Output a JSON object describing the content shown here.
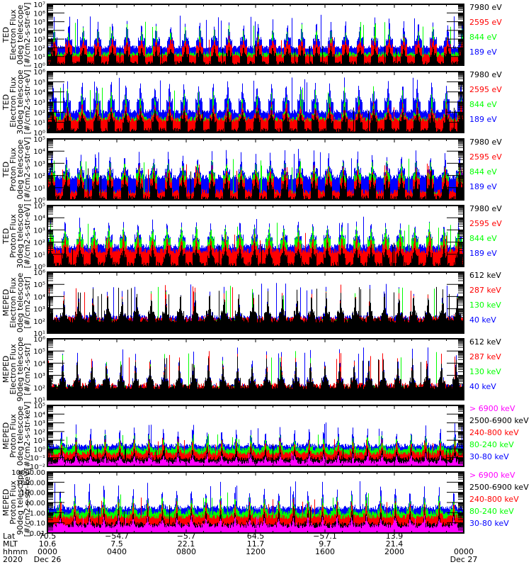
{
  "chart_data": {
    "type": "line",
    "title": "",
    "x_range_hours": [
      0,
      24
    ],
    "x_major_ticks_hours": [
      0,
      4,
      8,
      12,
      16,
      20,
      24
    ],
    "x_minor_step_hours": 1,
    "footer": {
      "row_labels": [
        "Lat",
        "MLT",
        "hhmm",
        "2020"
      ],
      "columns": [
        {
          "hour": 0,
          "lat": "70.5",
          "mlt": "10.6",
          "hhmm": "0000",
          "date": "Dec 26"
        },
        {
          "hour": 4,
          "lat": "−54.7",
          "mlt": "7.5",
          "hhmm": "0400",
          "date": ""
        },
        {
          "hour": 8,
          "lat": "−5.7",
          "mlt": "22.1",
          "hhmm": "0800",
          "date": ""
        },
        {
          "hour": 12,
          "lat": "64.5",
          "mlt": "11.7",
          "hhmm": "1200",
          "date": ""
        },
        {
          "hour": 16,
          "lat": "−57.1",
          "mlt": "9.7",
          "hhmm": "1600",
          "date": ""
        },
        {
          "hour": 20,
          "lat": "13.9",
          "mlt": "21.4",
          "hhmm": "2000",
          "date": ""
        },
        {
          "hour": 24,
          "lat": "",
          "mlt": "",
          "hhmm": "0000",
          "date": "Dec 27"
        }
      ]
    },
    "orbit_period_hours": 1.68,
    "panels": [
      {
        "ylabel": [
          "TED",
          "Electron Flux",
          "0deg telescope",
          "[#/cm2-s-str-eV]"
        ],
        "yscale": "log",
        "ylim_exp": [
          0,
          7
        ],
        "yticks": [
          "10⁰",
          "10¹",
          "10²",
          "10³",
          "10⁴",
          "10⁵",
          "10⁶",
          "10⁷"
        ],
        "series": [
          {
            "name": "189 eV",
            "color": "#0000ff",
            "base_exp": 2.0,
            "band_exp": 3.0,
            "peak_exp": 5.8
          },
          {
            "name": "844 eV",
            "color": "#00ff00",
            "base_exp": 1.3,
            "band_exp": 1.8,
            "peak_exp": 5.0
          },
          {
            "name": "2595 eV",
            "color": "#ff0000",
            "base_exp": 1.0,
            "band_exp": 2.2,
            "peak_exp": 3.4
          },
          {
            "name": "7980 eV",
            "color": "#000000",
            "base_exp": 0.2,
            "band_exp": 1.2,
            "peak_exp": 2.6
          }
        ],
        "legend": [
          "7980 eV",
          "2595 eV",
          "844 eV",
          "189 eV"
        ]
      },
      {
        "ylabel": [
          "TED",
          "Electron Flux",
          "30deg telescope",
          "[#/cm2-s-str-eV]"
        ],
        "yscale": "log",
        "ylim_exp": [
          0,
          6
        ],
        "yticks": [
          "10⁰",
          "10¹",
          "10²",
          "10³",
          "10⁴",
          "10⁵",
          "10⁶"
        ],
        "series": [
          {
            "name": "189 eV",
            "color": "#0000ff",
            "base_exp": 2.0,
            "band_exp": 3.2,
            "peak_exp": 5.6
          },
          {
            "name": "844 eV",
            "color": "#00ff00",
            "base_exp": 1.3,
            "band_exp": 1.8,
            "peak_exp": 4.6
          },
          {
            "name": "2595 eV",
            "color": "#ff0000",
            "base_exp": 1.2,
            "band_exp": 1.7,
            "peak_exp": 3.2
          },
          {
            "name": "7980 eV",
            "color": "#000000",
            "base_exp": 0.2,
            "band_exp": 1.2,
            "peak_exp": 2.6
          }
        ],
        "legend": [
          "7980 eV",
          "2595 eV",
          "844 eV",
          "189 eV"
        ]
      },
      {
        "ylabel": [
          "TED",
          "Proton Flux",
          "0deg telescope",
          "[#/cm2-s-str-eV]"
        ],
        "yscale": "log",
        "ylim_exp": [
          0,
          5
        ],
        "yticks": [
          "10⁰",
          "10¹",
          "10²",
          "10³",
          "10⁴",
          "10⁵"
        ],
        "series": [
          {
            "name": "189 eV",
            "color": "#0000ff",
            "base_exp": 1.8,
            "band_exp": 2.4,
            "peak_exp": 4.2
          },
          {
            "name": "844 eV",
            "color": "#00ff00",
            "base_exp": 0.4,
            "band_exp": 2.0,
            "peak_exp": 3.4
          },
          {
            "name": "2595 eV",
            "color": "#ff0000",
            "base_exp": 0.6,
            "band_exp": 1.6,
            "peak_exp": 3.0
          },
          {
            "name": "7980 eV",
            "color": "#000000",
            "base_exp": 0.1,
            "band_exp": 1.1,
            "peak_exp": 2.6
          }
        ],
        "legend": [
          "7980 eV",
          "2595 eV",
          "844 eV",
          "189 eV"
        ]
      },
      {
        "ylabel": [
          "TED",
          "Proton Flux",
          "30deg telescope",
          "[#/cm2-s-str-eV]"
        ],
        "yscale": "log",
        "ylim_exp": [
          0,
          5
        ],
        "yticks": [
          "10⁰",
          "10¹",
          "10²",
          "10³",
          "10⁴",
          "10⁵"
        ],
        "series": [
          {
            "name": "189 eV",
            "color": "#0000ff",
            "base_exp": 1.6,
            "band_exp": 2.4,
            "peak_exp": 4.1
          },
          {
            "name": "844 eV",
            "color": "#00ff00",
            "base_exp": 0.6,
            "band_exp": 2.2,
            "peak_exp": 3.6
          },
          {
            "name": "2595 eV",
            "color": "#ff0000",
            "base_exp": 1.2,
            "band_exp": 1.6,
            "peak_exp": 2.8
          },
          {
            "name": "7980 eV",
            "color": "#000000",
            "base_exp": 0.1,
            "band_exp": 0.9,
            "peak_exp": 2.0
          }
        ],
        "legend": [
          "7980 eV",
          "2595 eV",
          "844 eV",
          "189 eV"
        ]
      },
      {
        "ylabel": [
          "MEPED",
          "Electron Flux",
          "0deg telescope",
          "[#/cm2-s-str]"
        ],
        "yscale": "log",
        "ylim_exp": [
          1,
          6
        ],
        "yticks": [
          "10¹",
          "10²",
          "10³",
          "10⁴",
          "10⁵",
          "10⁶"
        ],
        "series": [
          {
            "name": "40 keV",
            "color": "#0000ff",
            "base_exp": 2.2,
            "band_exp": 2.5,
            "peak_exp": 5.2
          },
          {
            "name": "130 keV",
            "color": "#00ff00",
            "base_exp": 1.9,
            "band_exp": 2.1,
            "peak_exp": 4.9
          },
          {
            "name": "287 keV",
            "color": "#ff0000",
            "base_exp": 2.1,
            "band_exp": 2.3,
            "peak_exp": 5.0
          },
          {
            "name": "612 keV",
            "color": "#000000",
            "base_exp": 2.0,
            "band_exp": 2.6,
            "peak_exp": 4.8
          }
        ],
        "legend": [
          "612 keV",
          "287 keV",
          "130 keV",
          "40 keV"
        ]
      },
      {
        "ylabel": [
          "MEPED",
          "Electron Flux",
          "90deg telescope",
          "[#/cm2-s-str]"
        ],
        "yscale": "log",
        "ylim_exp": [
          1,
          6
        ],
        "yticks": [
          "10¹",
          "10²",
          "10³",
          "10⁴",
          "10⁵",
          "10⁶"
        ],
        "series": [
          {
            "name": "40 keV",
            "color": "#0000ff",
            "base_exp": 2.0,
            "band_exp": 2.6,
            "peak_exp": 5.4
          },
          {
            "name": "130 keV",
            "color": "#00ff00",
            "base_exp": 1.9,
            "band_exp": 2.2,
            "peak_exp": 5.0
          },
          {
            "name": "287 keV",
            "color": "#ff0000",
            "base_exp": 2.1,
            "band_exp": 2.4,
            "peak_exp": 5.0
          },
          {
            "name": "612 keV",
            "color": "#000000",
            "base_exp": 2.0,
            "band_exp": 2.6,
            "peak_exp": 4.6
          }
        ],
        "legend": [
          "612 keV",
          "287 keV",
          "130 keV",
          "40 keV"
        ]
      },
      {
        "ylabel": [
          "MEPED",
          "Proton Flux",
          "0deg telescope",
          "[#/cm2-s-str-keV]"
        ],
        "yscale": "log",
        "ylim_exp": [
          -2,
          5
        ],
        "yticks": [
          "10⁻²",
          "10⁻¹",
          "10⁰",
          "10¹",
          "10²",
          "10³",
          "10⁴",
          "10⁵"
        ],
        "series": [
          {
            "name": "30-80 keV",
            "color": "#0000ff",
            "base_exp": 0.3,
            "band_exp": 0.5,
            "peak_exp": 3.1
          },
          {
            "name": "80-240 keV",
            "color": "#00ff00",
            "base_exp": -0.1,
            "band_exp": 0.2,
            "peak_exp": 1.8
          },
          {
            "name": "240-800 keV",
            "color": "#ff0000",
            "base_exp": -0.6,
            "band_exp": -0.3,
            "peak_exp": 1.3
          },
          {
            "name": "2500-6900 keV",
            "color": "#000000",
            "base_exp": -1.2,
            "band_exp": -1.0,
            "peak_exp": 0.6
          },
          {
            "name": "> 6900 keV",
            "color": "#ff00ff",
            "base_exp": -1.6,
            "band_exp": -1.4,
            "peak_exp": -0.4
          }
        ],
        "legend": [
          "> 6900 keV",
          "2500-6900 keV",
          "240-800 keV",
          "80-240 keV",
          "30-80 keV"
        ]
      },
      {
        "ylabel": [
          "MEPED",
          "Proton Flux",
          "90deg telescope",
          "[#/cm2-s-str-keV]"
        ],
        "yscale": "log",
        "ylim_exp": [
          -2,
          4
        ],
        "yticks": [
          "0.01",
          "0.10",
          "1.00",
          "10.00",
          "100.00",
          "1000.00",
          "10000.00"
        ],
        "series": [
          {
            "name": "30-80 keV",
            "color": "#0000ff",
            "base_exp": 0.4,
            "band_exp": 0.6,
            "peak_exp": 3.2
          },
          {
            "name": "80-240 keV",
            "color": "#00ff00",
            "base_exp": -0.1,
            "band_exp": 0.3,
            "peak_exp": 2.0
          },
          {
            "name": "240-800 keV",
            "color": "#ff0000",
            "base_exp": -0.5,
            "band_exp": -0.3,
            "peak_exp": 1.5
          },
          {
            "name": "2500-6900 keV",
            "color": "#000000",
            "base_exp": -1.2,
            "band_exp": -1.0,
            "peak_exp": 0.8
          },
          {
            "name": "> 6900 keV",
            "color": "#ff00ff",
            "base_exp": -1.4,
            "band_exp": -1.2,
            "peak_exp": -0.2
          }
        ],
        "legend": [
          "> 6900 keV",
          "2500-6900 keV",
          "240-800 keV",
          "80-240 keV",
          "30-80 keV"
        ]
      }
    ]
  }
}
